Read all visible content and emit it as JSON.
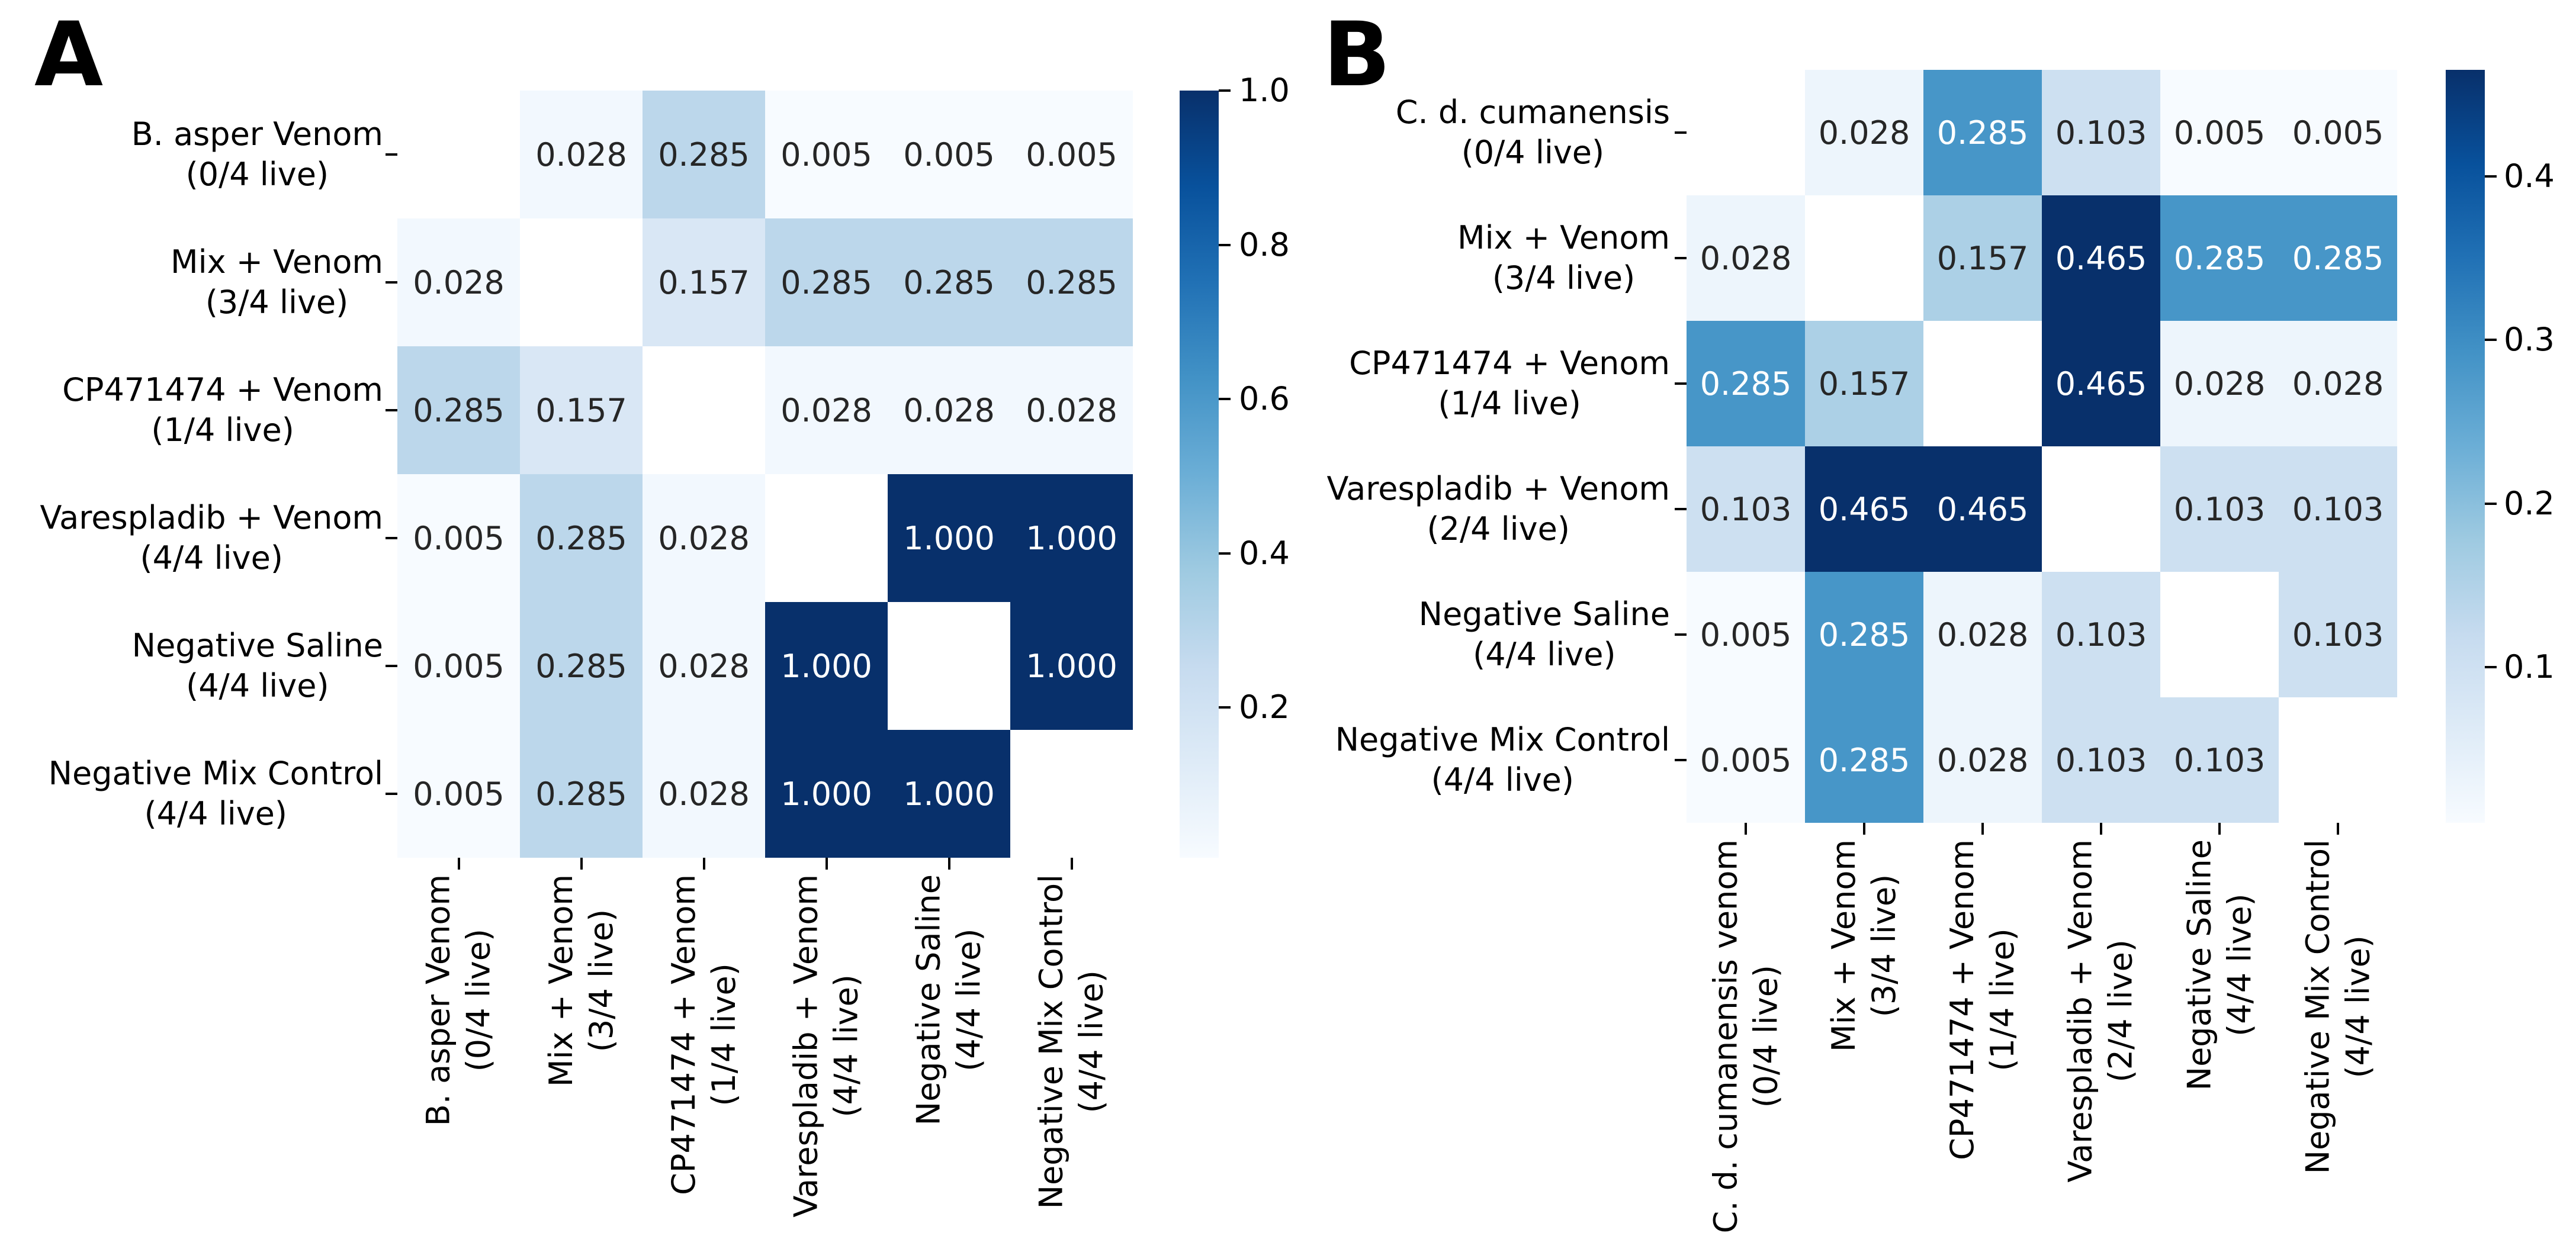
{
  "figure": {
    "background": "#ffffff",
    "colors": {
      "colormap": "Blues",
      "colormap_low": "#f7fbff",
      "colormap_high": "#08306b",
      "annotation_dark": "#262626",
      "annotation_light": "#ffffff",
      "axis_text": "#000000"
    }
  },
  "panels": [
    {
      "letter": "A"
    },
    {
      "letter": "B"
    }
  ],
  "chart_data": [
    {
      "type": "heatmap",
      "panel": "A",
      "title": "",
      "xlabel": "",
      "ylabel": "",
      "row_labels": [
        "B. asper Venom\n(0/4 live)",
        "Mix + Venom\n(3/4 live)",
        "CP471474 + Venom\n(1/4 live)",
        "Varespladib + Venom\n(4/4 live)",
        "Negative Saline\n(4/4 live)",
        "Negative Mix Control\n(4/4 live)"
      ],
      "col_labels": [
        "B. asper Venom\n(0/4 live)",
        "Mix + Venom\n(3/4 live)",
        "CP471474 + Venom\n(1/4 live)",
        "Varespladib + Venom\n(4/4 live)",
        "Negative Saline\n(4/4 live)",
        "Negative Mix Control\n(4/4 live)"
      ],
      "values": [
        [
          null,
          0.028,
          0.285,
          0.005,
          0.005,
          0.005
        ],
        [
          0.028,
          null,
          0.157,
          0.285,
          0.285,
          0.285
        ],
        [
          0.285,
          0.157,
          null,
          0.028,
          0.028,
          0.028
        ],
        [
          0.005,
          0.285,
          0.028,
          null,
          1.0,
          1.0
        ],
        [
          0.005,
          0.285,
          0.028,
          1.0,
          null,
          1.0
        ],
        [
          0.005,
          0.285,
          0.028,
          1.0,
          1.0,
          null
        ]
      ],
      "masked_diagonal": true,
      "annotation_decimals": 3,
      "colormap": "Blues",
      "vmin": 0.005,
      "vmax": 1.0,
      "colorbar_ticks": [
        1.0,
        0.8,
        0.6,
        0.4,
        0.2
      ],
      "colorbar_tick_labels": [
        "1.0",
        "0.8",
        "0.6",
        "0.4",
        "0.2"
      ],
      "legend_position": "right-colorbar",
      "grid": false
    },
    {
      "type": "heatmap",
      "panel": "B",
      "title": "",
      "xlabel": "",
      "ylabel": "",
      "row_labels": [
        "C. d. cumanensis\n(0/4 live)",
        "Mix + Venom\n(3/4 live)",
        "CP471474 + Venom\n(1/4 live)",
        "Varespladib + Venom\n(2/4 live)",
        "Negative Saline\n(4/4 live)",
        "Negative Mix Control\n(4/4 live)"
      ],
      "col_labels": [
        "C. d. cumanensis venom\n(0/4 live)",
        "Mix + Venom\n(3/4 live)",
        "CP471474 + Venom\n(1/4 live)",
        "Varespladib + Venom\n(2/4 live)",
        "Negative Saline\n(4/4 live)",
        "Negative Mix Control\n(4/4 live)"
      ],
      "values": [
        [
          null,
          0.028,
          0.285,
          0.103,
          0.005,
          0.005
        ],
        [
          0.028,
          null,
          0.157,
          0.465,
          0.285,
          0.285
        ],
        [
          0.285,
          0.157,
          null,
          0.465,
          0.028,
          0.028
        ],
        [
          0.103,
          0.465,
          0.465,
          null,
          0.103,
          0.103
        ],
        [
          0.005,
          0.285,
          0.028,
          0.103,
          null,
          0.103
        ],
        [
          0.005,
          0.285,
          0.028,
          0.103,
          0.103,
          null
        ]
      ],
      "masked_diagonal": true,
      "annotation_decimals": 3,
      "colormap": "Blues",
      "vmin": 0.005,
      "vmax": 0.465,
      "colorbar_ticks": [
        0.4,
        0.3,
        0.2,
        0.1
      ],
      "colorbar_tick_labels": [
        "0.4",
        "0.3",
        "0.2",
        "0.1"
      ],
      "legend_position": "right-colorbar",
      "grid": false
    }
  ]
}
